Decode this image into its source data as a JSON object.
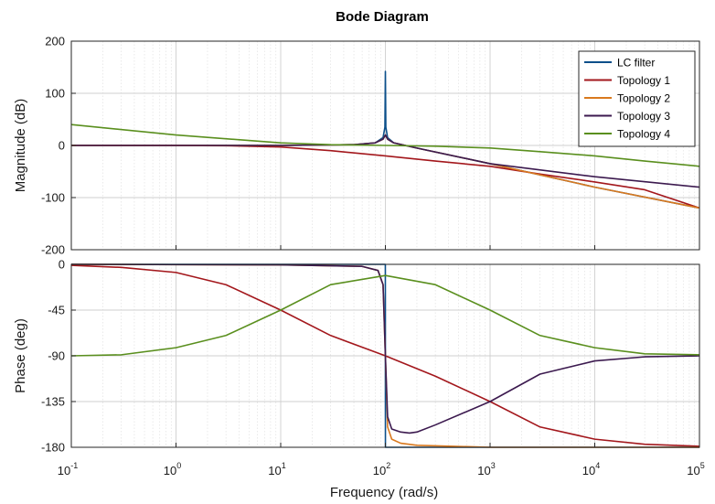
{
  "chart_data": {
    "type": "line",
    "title": "Bode Diagram",
    "xlabel": "Frequency  (rad/s)",
    "xscale": "log",
    "xlim": [
      0.1,
      100000
    ],
    "x_ticks": [
      {
        "base": "10",
        "exp": "-1"
      },
      {
        "base": "10",
        "exp": "0"
      },
      {
        "base": "10",
        "exp": "1"
      },
      {
        "base": "10",
        "exp": "2"
      },
      {
        "base": "10",
        "exp": "3"
      },
      {
        "base": "10",
        "exp": "4"
      },
      {
        "base": "10",
        "exp": "5"
      }
    ],
    "grid": true,
    "legend_position": "top-right",
    "magnitude": {
      "ylabel": "Magnitude (dB)",
      "ylim": [
        -200,
        200
      ],
      "y_ticks": [
        "200",
        "100",
        "0",
        "-100",
        "-200"
      ]
    },
    "phase": {
      "ylabel": "Phase (deg)",
      "ylim": [
        -180,
        0
      ],
      "y_ticks": [
        "0",
        "-45",
        "-90",
        "-135",
        "-180"
      ]
    },
    "series": [
      {
        "name": "LC filter",
        "color": "#0b4f8a",
        "magnitude": {
          "x": [
            0.1,
            1,
            10,
            50,
            80,
            95,
            99,
            100,
            101,
            105,
            120,
            200,
            1000,
            10000,
            100000
          ],
          "y": [
            0,
            0,
            0,
            1.5,
            5,
            15,
            35,
            142,
            35,
            15,
            5,
            -5,
            -35,
            -80,
            -120
          ]
        },
        "phase": {
          "x": [
            0.1,
            99.9,
            100,
            100.1,
            100000
          ],
          "y": [
            0,
            0,
            -90,
            -180,
            -180
          ]
        }
      },
      {
        "name": "Topology 1",
        "color": "#a3171c",
        "magnitude": {
          "x": [
            0.1,
            1,
            3,
            10,
            30,
            100,
            300,
            1000,
            3000,
            10000,
            30000,
            100000
          ],
          "y": [
            0,
            -0.1,
            -0.5,
            -3,
            -10,
            -20,
            -30,
            -40,
            -55,
            -70,
            -85,
            -120
          ]
        },
        "phase": {
          "x": [
            0.1,
            0.3,
            1,
            3,
            10,
            30,
            100,
            300,
            1000,
            3000,
            10000,
            30000,
            100000
          ],
          "y": [
            -1,
            -3,
            -8,
            -20,
            -45,
            -70,
            -90,
            -110,
            -135,
            -160,
            -172,
            -177,
            -179
          ]
        }
      },
      {
        "name": "Topology 2",
        "color": "#d9791e",
        "magnitude": {
          "x": [
            0.1,
            1,
            10,
            50,
            80,
            95,
            100,
            105,
            120,
            200,
            1000,
            10000,
            100000
          ],
          "y": [
            0,
            0,
            0,
            1.5,
            5,
            12,
            20,
            12,
            5,
            -5,
            -35,
            -80,
            -120
          ]
        },
        "phase": {
          "x": [
            0.1,
            10,
            60,
            85,
            95,
            100,
            105,
            115,
            140,
            200,
            1000,
            100000
          ],
          "y": [
            0,
            -0.5,
            -2,
            -6,
            -20,
            -90,
            -160,
            -172,
            -176,
            -178,
            -180,
            -180
          ]
        }
      },
      {
        "name": "Topology 3",
        "color": "#3c1a4f",
        "magnitude": {
          "x": [
            0.1,
            1,
            10,
            50,
            80,
            95,
            100,
            105,
            120,
            200,
            1000,
            10000,
            100000
          ],
          "y": [
            0,
            0,
            0,
            1.5,
            5,
            12,
            20,
            12,
            5,
            -5,
            -35,
            -60,
            -80
          ]
        },
        "phase": {
          "x": [
            0.1,
            10,
            60,
            85,
            95,
            100,
            105,
            115,
            140,
            170,
            200,
            300,
            1000,
            3000,
            10000,
            30000,
            100000
          ],
          "y": [
            0,
            -0.5,
            -2,
            -6,
            -20,
            -90,
            -150,
            -162,
            -165,
            -166,
            -165,
            -158,
            -135,
            -108,
            -95,
            -91,
            -90
          ]
        }
      },
      {
        "name": "Topology 4",
        "color": "#5a8f1e",
        "magnitude": {
          "x": [
            0.1,
            1,
            10,
            30,
            100,
            300,
            1000,
            3000,
            10000,
            30000,
            100000
          ],
          "y": [
            40,
            20,
            5,
            1.5,
            0,
            -1.5,
            -5,
            -12,
            -20,
            -30,
            -40
          ]
        },
        "phase": {
          "x": [
            0.1,
            0.3,
            1,
            3,
            10,
            30,
            100,
            300,
            1000,
            3000,
            10000,
            30000,
            100000
          ],
          "y": [
            -90,
            -89,
            -82,
            -70,
            -45,
            -20,
            -11,
            -20,
            -45,
            -70,
            -82,
            -88,
            -89
          ]
        }
      }
    ]
  }
}
